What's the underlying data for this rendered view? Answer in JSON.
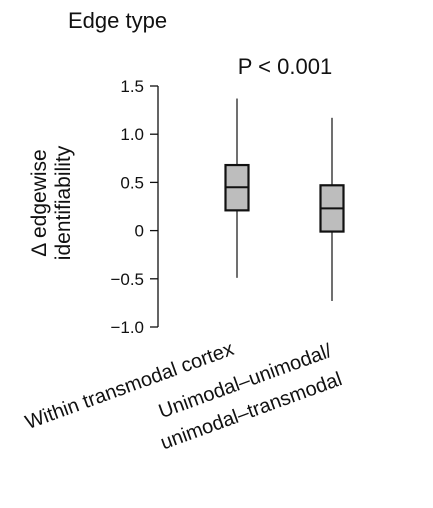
{
  "chart_data": {
    "type": "box",
    "title": "Edge type",
    "annotation": "P < 0.001",
    "ylabel": [
      "Δ edgewise",
      "identifiability"
    ],
    "ylim": [
      -1.0,
      1.5
    ],
    "yticks": [
      1.5,
      1.0,
      0.5,
      0,
      -0.5,
      -1.0
    ],
    "ytick_labels": [
      "1.5",
      "1.0",
      "0.5",
      "0",
      "−0.5",
      "−1.0"
    ],
    "categories": [
      [
        "Within transmodal cortex"
      ],
      [
        "Unimodal–unimodal/",
        "unimodal–transmodal"
      ]
    ],
    "series": [
      {
        "whisker_low": -0.49,
        "q1": 0.21,
        "median": 0.45,
        "q3": 0.68,
        "whisker_high": 1.37
      },
      {
        "whisker_low": -0.73,
        "q1": -0.01,
        "median": 0.23,
        "q3": 0.47,
        "whisker_high": 1.17
      }
    ],
    "box_fill": "#bdbdbd",
    "stroke_color": "#111111"
  }
}
